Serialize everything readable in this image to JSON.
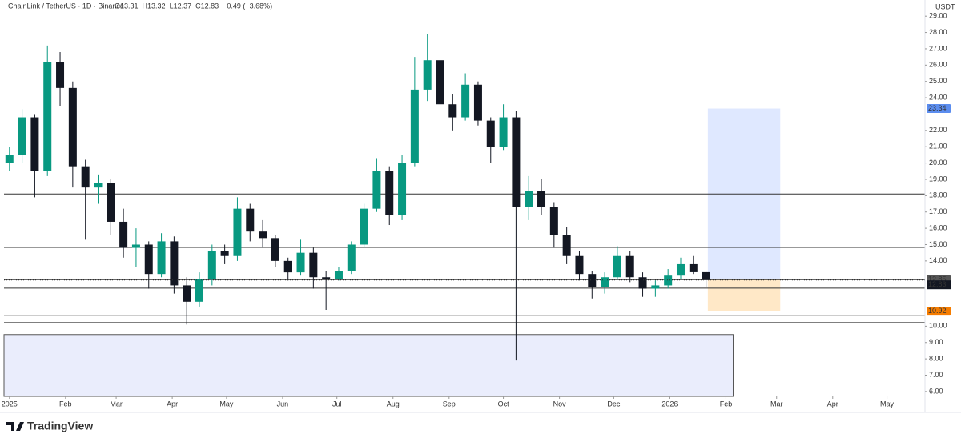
{
  "chart_data": {
    "type": "candlestick",
    "title": "ChainLink / TetherUS · 1D · Binance",
    "ohlc_header": [
      "O13.31",
      "H13.32",
      "L12.37",
      "C12.83",
      "−0.49 (−3.68%)"
    ],
    "y_axis_label": "USDT",
    "brand": "TradingView",
    "up_color": "#089981",
    "down_color": "#131722",
    "x": [
      0,
      7,
      14,
      21,
      28,
      35,
      42,
      49,
      56,
      63,
      70,
      77,
      84,
      91,
      98,
      105,
      112,
      119,
      126,
      133,
      140,
      147,
      154,
      161,
      168,
      175,
      182,
      189,
      196,
      203,
      210,
      217,
      224,
      231,
      238,
      245,
      252,
      259,
      266,
      273,
      280,
      287,
      294,
      301,
      308,
      315,
      322,
      329,
      336,
      343,
      350,
      357,
      364,
      371,
      378,
      385
    ],
    "open": [
      20,
      20.5,
      22.8,
      19.5,
      26.2,
      24.6,
      19.8,
      18.5,
      18.8,
      16.4,
      14.8,
      15,
      13.2,
      15.2,
      12.5,
      11.5,
      12.9,
      14.6,
      14.3,
      17.2,
      15.8,
      15.4,
      14,
      13.3,
      14.5,
      13,
      12.9,
      13.4,
      15,
      17.2,
      19.5,
      16.8,
      20,
      24.5,
      26.3,
      23.6,
      22.8,
      24.8,
      22.6,
      21,
      22.8,
      17.3,
      18.3,
      17.3,
      15.6,
      14.3,
      13.2,
      12.4,
      13,
      14.3,
      13,
      12.3,
      12.5,
      13.1,
      13.8,
      13.31
    ],
    "high": [
      21,
      23.3,
      23,
      27.2,
      26.8,
      25,
      20.2,
      19.3,
      19,
      17.2,
      16,
      15.2,
      15.7,
      15.5,
      13,
      13.3,
      15,
      15,
      17.9,
      17.5,
      16.5,
      15.6,
      14.2,
      15.3,
      14.8,
      13.4,
      13.6,
      15.2,
      17.5,
      20.3,
      19.8,
      20.5,
      26.5,
      27.9,
      26.6,
      24.2,
      25.5,
      25,
      22.8,
      23.6,
      23.2,
      19.2,
      19,
      17.6,
      16.1,
      14.6,
      13.4,
      13.3,
      14.9,
      14.6,
      13.3,
      12.8,
      13.5,
      14.2,
      14.3,
      13.32
    ],
    "low": [
      19.5,
      20,
      17.9,
      19.2,
      23.5,
      18.5,
      15.3,
      17.5,
      15.6,
      14.2,
      13.6,
      12.3,
      13,
      12,
      10.1,
      11.2,
      12.5,
      13.8,
      14,
      15.2,
      14.8,
      13.6,
      12.8,
      13.1,
      12.3,
      11,
      12.8,
      13.2,
      14.8,
      17,
      16.2,
      16.5,
      19.8,
      23.8,
      22.5,
      22,
      22.6,
      22.3,
      20,
      20.8,
      7.9,
      16.5,
      16.8,
      14.8,
      13.8,
      12.8,
      11.7,
      12,
      12.9,
      12.7,
      11.8,
      11.8,
      12.3,
      12.9,
      13.2,
      12.37
    ],
    "close": [
      20.5,
      22.8,
      19.5,
      26.2,
      24.6,
      19.8,
      18.5,
      18.8,
      16.4,
      14.8,
      15,
      13.2,
      15.2,
      12.5,
      11.5,
      12.9,
      14.6,
      14.3,
      17.2,
      15.8,
      15.4,
      14,
      13.3,
      14.5,
      13,
      12.9,
      13.4,
      15,
      17.2,
      19.5,
      16.8,
      20,
      24.5,
      26.3,
      23.6,
      22.8,
      24.8,
      22.6,
      21,
      22.8,
      17.3,
      18.3,
      17.3,
      15.6,
      14.3,
      13.2,
      12.4,
      13,
      14.3,
      13,
      12.3,
      12.5,
      13.1,
      13.8,
      13.31,
      12.83
    ],
    "levels": [
      18.1,
      14.83,
      12.85,
      12.33,
      10.67,
      10.22
    ],
    "position": {
      "start": 386,
      "end": 426,
      "entry": 12.85,
      "target": 23.34,
      "stop": 10.92
    },
    "zone": {
      "end": 400,
      "top": 9.49
    },
    "xlim": [
      -3,
      506
    ],
    "ylim": [
      5.7,
      29.5
    ],
    "xticks": [
      {
        "value": 0,
        "label": "2025"
      },
      {
        "value": 31,
        "label": "Feb"
      },
      {
        "value": 59,
        "label": "Mar"
      },
      {
        "value": 90,
        "label": "Apr"
      },
      {
        "value": 120,
        "label": "May"
      },
      {
        "value": 151,
        "label": "Jun"
      },
      {
        "value": 181,
        "label": "Jul"
      },
      {
        "value": 212,
        "label": "Aug"
      },
      {
        "value": 243,
        "label": "Sep"
      },
      {
        "value": 273,
        "label": "Oct"
      },
      {
        "value": 304,
        "label": "Nov"
      },
      {
        "value": 334,
        "label": "Dec"
      },
      {
        "value": 365,
        "label": "2026"
      },
      {
        "value": 396,
        "label": "Feb"
      },
      {
        "value": 424,
        "label": "Mar"
      },
      {
        "value": 455,
        "label": "Apr"
      },
      {
        "value": 485,
        "label": "May"
      }
    ],
    "yticks": [
      {
        "value": 6,
        "label": "6.00"
      },
      {
        "value": 7,
        "label": "7.00"
      },
      {
        "value": 8,
        "label": "8.00"
      },
      {
        "value": 9,
        "label": "9.00"
      },
      {
        "value": 10,
        "label": "10.00"
      },
      {
        "value": 14,
        "label": "14.00"
      },
      {
        "value": 15,
        "label": "15.00"
      },
      {
        "value": 16,
        "label": "16.00"
      },
      {
        "value": 17,
        "label": "17.00"
      },
      {
        "value": 18,
        "label": "18.00"
      },
      {
        "value": 19,
        "label": "19.00"
      },
      {
        "value": 20,
        "label": "20.00"
      },
      {
        "value": 21,
        "label": "21.00"
      },
      {
        "value": 22,
        "label": "22.00"
      },
      {
        "value": 24,
        "label": "24.00"
      },
      {
        "value": 25,
        "label": "25.00"
      },
      {
        "value": 26,
        "label": "26.00"
      },
      {
        "value": 27,
        "label": "27.00"
      },
      {
        "value": 28,
        "label": "28.00"
      },
      {
        "value": 29,
        "label": "29.00"
      }
    ]
  }
}
